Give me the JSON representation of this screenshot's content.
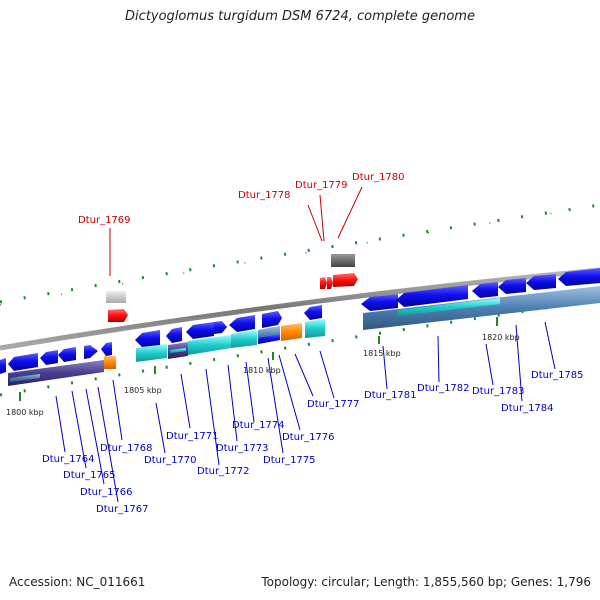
{
  "title": "Dictyoglomus turgidum DSM 6724, complete genome",
  "footer": {
    "accession": "Accession: NC_011661",
    "topology": "Topology: circular; Length: 1,855,560 bp; Genes: 1,796"
  },
  "scale_labels": [
    "1800 kbp",
    "1805 kbp",
    "1810 kbp",
    "1815 kbp",
    "1820 kbp"
  ],
  "genes": [
    {
      "name": "Dtur_1764",
      "color": "#0000cc"
    },
    {
      "name": "Dtur_1765",
      "color": "#0000cc"
    },
    {
      "name": "Dtur_1766",
      "color": "#0000cc"
    },
    {
      "name": "Dtur_1767",
      "color": "#0000cc"
    },
    {
      "name": "Dtur_1768",
      "color": "#0000cc"
    },
    {
      "name": "Dtur_1769",
      "color": "#cc0000"
    },
    {
      "name": "Dtur_1770",
      "color": "#0000cc"
    },
    {
      "name": "Dtur_1771",
      "color": "#0000cc"
    },
    {
      "name": "Dtur_1772",
      "color": "#0000cc"
    },
    {
      "name": "Dtur_1773",
      "color": "#0000cc"
    },
    {
      "name": "Dtur_1774",
      "color": "#0000cc"
    },
    {
      "name": "Dtur_1775",
      "color": "#0000cc"
    },
    {
      "name": "Dtur_1776",
      "color": "#0000cc"
    },
    {
      "name": "Dtur_1777",
      "color": "#0000cc"
    },
    {
      "name": "Dtur_1778",
      "color": "#cc0000"
    },
    {
      "name": "Dtur_1779",
      "color": "#cc0000"
    },
    {
      "name": "Dtur_1780",
      "color": "#cc0000"
    },
    {
      "name": "Dtur_1781",
      "color": "#0000cc"
    },
    {
      "name": "Dtur_1782",
      "color": "#0000cc"
    },
    {
      "name": "Dtur_1783",
      "color": "#0000cc"
    },
    {
      "name": "Dtur_1784",
      "color": "#0000cc"
    },
    {
      "name": "Dtur_1785",
      "color": "#0000cc"
    }
  ],
  "colors": {
    "cds_arrow": "#1010ee",
    "rna_gene": "#ff1010",
    "backbone": "#888888",
    "tick": "#228822",
    "cog_cyan": "#22cccc",
    "cog_purple": "#4a3f8c",
    "cog_steelblue": "#4f7fb0",
    "cog_orange": "#ff8800",
    "cog_gray": "#c8c8c8",
    "cog_darkgray": "#555555"
  }
}
